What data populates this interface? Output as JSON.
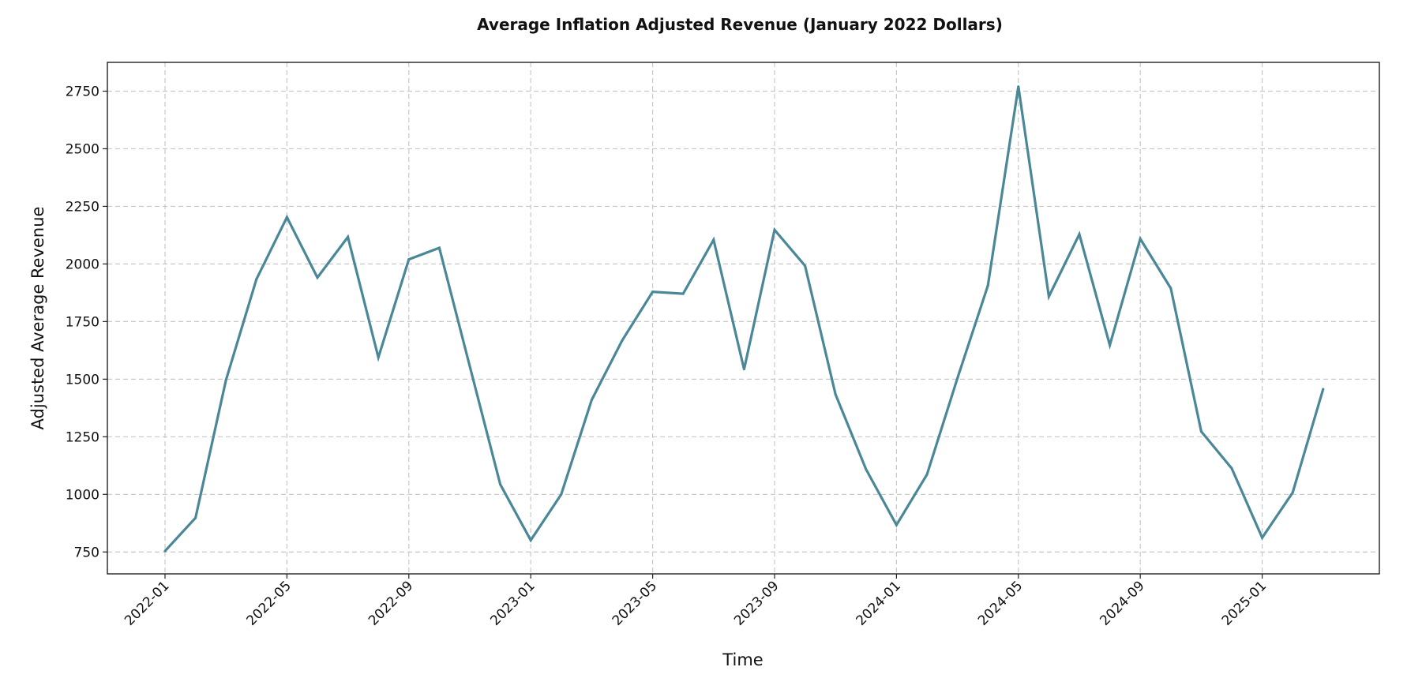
{
  "chart_data": {
    "type": "line",
    "title": "Average Inflation Adjusted Revenue (January 2022 Dollars)",
    "xlabel": "Time",
    "ylabel": "Adjusted Average Revenue",
    "ylim": [
      655,
      2875
    ],
    "grid": true,
    "x_start": "2022-01",
    "x_ticks": [
      "2022-01",
      "2022-05",
      "2022-09",
      "2023-01",
      "2023-05",
      "2023-09",
      "2024-01",
      "2024-05",
      "2024-09",
      "2025-01"
    ],
    "x_tick_month_index": [
      0,
      4,
      8,
      12,
      16,
      20,
      24,
      28,
      32,
      36
    ],
    "y_ticks": [
      "750",
      "1000",
      "1250",
      "1500",
      "1750",
      "2000",
      "2250",
      "2500",
      "2750"
    ],
    "x": [
      "2022-01",
      "2022-02",
      "2022-03",
      "2022-04",
      "2022-05",
      "2022-06",
      "2022-07",
      "2022-08",
      "2022-09",
      "2022-10",
      "2022-11",
      "2022-12",
      "2023-01",
      "2023-02",
      "2023-03",
      "2023-04",
      "2023-05",
      "2023-06",
      "2023-07",
      "2023-08",
      "2023-09",
      "2023-10",
      "2023-11",
      "2023-12",
      "2024-01",
      "2024-02",
      "2024-03",
      "2024-04",
      "2024-05",
      "2024-06",
      "2024-07",
      "2024-08",
      "2024-09",
      "2024-10",
      "2024-11",
      "2024-12",
      "2025-01",
      "2025-02",
      "2025-03"
    ],
    "series": [
      {
        "name": "Adjusted Average Revenue",
        "color": "#4a8797",
        "values": [
          754,
          898,
          1496,
          1934,
          2203,
          1941,
          2117,
          1594,
          2020,
          2070,
          1556,
          1043,
          801,
          1000,
          1410,
          1668,
          1879,
          1871,
          2105,
          1543,
          2148,
          1992,
          1434,
          1109,
          867,
          1086,
          1504,
          1906,
          2770,
          1859,
          2129,
          1648,
          2109,
          1895,
          1273,
          1113,
          812,
          1008,
          1457
        ]
      }
    ]
  }
}
